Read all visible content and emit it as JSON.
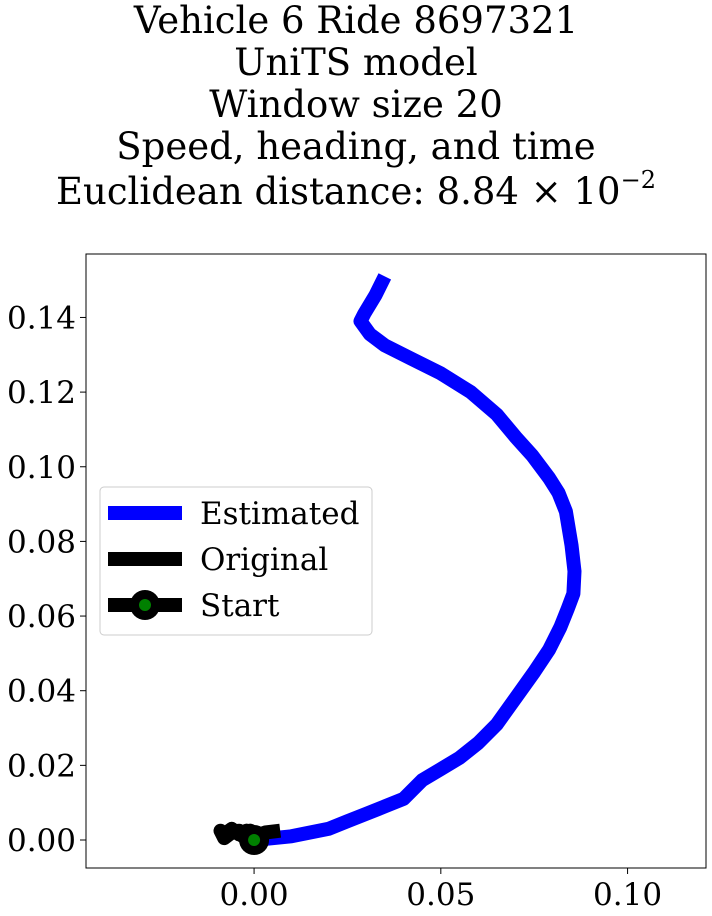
{
  "chart_data": {
    "type": "line",
    "title_lines": [
      "Vehicle 6 Ride 8697321",
      "UniTS model",
      "Window size 20",
      "Speed, heading, and time"
    ],
    "title_metric": {
      "prefix": "Euclidean distance: 8.84",
      "times": "×",
      "base": "10",
      "exponent": "−2"
    },
    "xlabel": "",
    "ylabel": "",
    "xlim": [
      -0.045,
      0.121
    ],
    "ylim": [
      -0.0075,
      0.157
    ],
    "xticks": [
      {
        "value": 0.0,
        "label": "0.00"
      },
      {
        "value": 0.05,
        "label": "0.05"
      },
      {
        "value": 0.1,
        "label": "0.10"
      }
    ],
    "yticks": [
      {
        "value": 0.0,
        "label": "0.00"
      },
      {
        "value": 0.02,
        "label": "0.02"
      },
      {
        "value": 0.04,
        "label": "0.04"
      },
      {
        "value": 0.06,
        "label": "0.06"
      },
      {
        "value": 0.08,
        "label": "0.08"
      },
      {
        "value": 0.1,
        "label": "0.10"
      },
      {
        "value": 0.12,
        "label": "0.12"
      },
      {
        "value": 0.14,
        "label": "0.14"
      }
    ],
    "grid": false,
    "legend_position": "center-left",
    "series": [
      {
        "name": "Estimated",
        "color": "#0000ff",
        "x": [
          0.0,
          0.01,
          0.02,
          0.025,
          0.03,
          0.035,
          0.04,
          0.045,
          0.05,
          0.055,
          0.06,
          0.065,
          0.07,
          0.075,
          0.079,
          0.082,
          0.084,
          0.0855,
          0.0858,
          0.085,
          0.0835,
          0.0815,
          0.079,
          0.0745,
          0.07,
          0.065,
          0.058,
          0.05,
          0.042,
          0.035,
          0.031,
          0.0285,
          0.0295,
          0.0325,
          0.035
        ],
        "y": [
          0.0,
          0.001,
          0.003,
          0.005,
          0.007,
          0.009,
          0.011,
          0.016,
          0.019,
          0.022,
          0.026,
          0.031,
          0.038,
          0.045,
          0.051,
          0.057,
          0.062,
          0.066,
          0.072,
          0.079,
          0.088,
          0.093,
          0.097,
          0.103,
          0.108,
          0.114,
          0.12,
          0.125,
          0.129,
          0.1325,
          0.1355,
          0.139,
          0.141,
          0.146,
          0.151
        ]
      },
      {
        "name": "Original",
        "color": "#000000",
        "x": [
          0.007,
          0.003,
          0.0,
          -0.002,
          -0.004,
          -0.006,
          -0.008,
          -0.009,
          -0.008,
          -0.006,
          -0.004,
          -0.003,
          -0.001,
          0.001,
          0.0
        ],
        "y": [
          0.0025,
          0.002,
          0.001,
          0.0025,
          0.0015,
          0.003,
          0.0015,
          0.0025,
          0.0005,
          0.002,
          0.0025,
          0.001,
          0.0025,
          0.0015,
          0.0
        ]
      }
    ],
    "start_marker": {
      "name": "Start",
      "x": 0.0,
      "y": 0.0,
      "color": "#008000",
      "edge_color": "#000000"
    }
  }
}
